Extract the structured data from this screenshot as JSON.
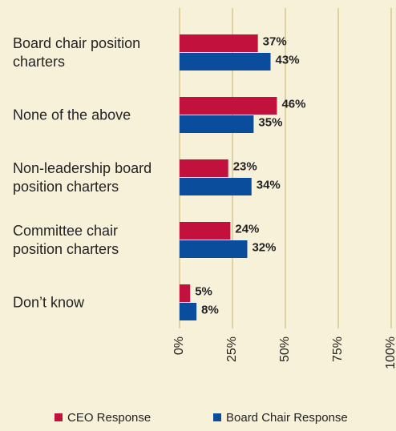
{
  "chart_data": {
    "type": "hbar",
    "categories": [
      "Board chair position charters",
      "None of the above",
      "Non-leadership board position charters",
      "Committee chair position charters",
      "Don’t know"
    ],
    "series": [
      {
        "name": "CEO Response",
        "color": "#c3113e",
        "values": [
          37,
          46,
          23,
          24,
          5
        ],
        "value_labels": [
          "37%",
          "46%",
          "23%",
          "24%",
          "5%"
        ]
      },
      {
        "name": "Board Chair Response",
        "color": "#0b4d9d",
        "values": [
          43,
          35,
          34,
          32,
          8
        ],
        "value_labels": [
          "43%",
          "35%",
          "34%",
          "32%",
          "8%"
        ]
      }
    ],
    "xlim": [
      0,
      100
    ],
    "xticks": [
      {
        "value": 0,
        "label": "0%"
      },
      {
        "value": 25,
        "label": "25%"
      },
      {
        "value": 50,
        "label": "50%"
      },
      {
        "value": 75,
        "label": "75%"
      },
      {
        "value": 100,
        "label": "100%"
      }
    ],
    "grid": true
  }
}
